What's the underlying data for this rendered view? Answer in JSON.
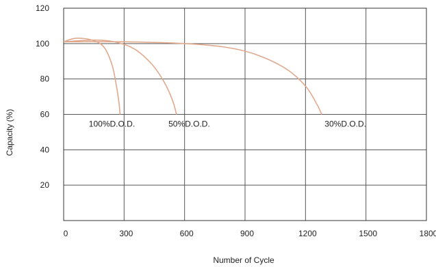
{
  "chart_data": {
    "type": "line",
    "title": "",
    "xlabel": "Number of Cycle",
    "ylabel": "Capacity (%)",
    "xlim": [
      0,
      1800
    ],
    "ylim": [
      0,
      120
    ],
    "x_ticks": [
      0,
      300,
      600,
      900,
      1200,
      1500,
      1800
    ],
    "x_tick_labels": [
      "0",
      "300",
      "600",
      "900",
      "1200",
      "1500",
      "1800"
    ],
    "y_ticks": [
      20,
      40,
      60,
      80,
      100,
      120
    ],
    "y_tick_labels": [
      "20",
      "40",
      "60",
      "80",
      "100",
      "120"
    ],
    "grid": true,
    "legend": "none",
    "series_color": "#e0a98e",
    "series": [
      {
        "name": "100%D.O.D.",
        "x": [
          0,
          60,
          140,
          200,
          240,
          262,
          275,
          280
        ],
        "y": [
          101,
          103,
          102,
          98,
          88,
          76,
          66,
          60
        ]
      },
      {
        "name": "50%D.O.D.",
        "x": [
          0,
          150,
          250,
          350,
          440,
          500,
          540,
          560
        ],
        "y": [
          101,
          102,
          101,
          97,
          88,
          78,
          68,
          60
        ]
      },
      {
        "name": "30%D.O.D.",
        "x": [
          0,
          300,
          600,
          800,
          950,
          1100,
          1200,
          1260,
          1280
        ],
        "y": [
          101,
          101,
          100,
          98,
          94,
          86,
          76,
          65,
          60
        ]
      }
    ],
    "annotations": [
      {
        "text": "100%D.O.D.",
        "x": 125,
        "y": 55
      },
      {
        "text": "50%D.O.D.",
        "x": 520,
        "y": 55
      },
      {
        "text": "30%D.O.D.",
        "x": 1295,
        "y": 55
      }
    ]
  }
}
